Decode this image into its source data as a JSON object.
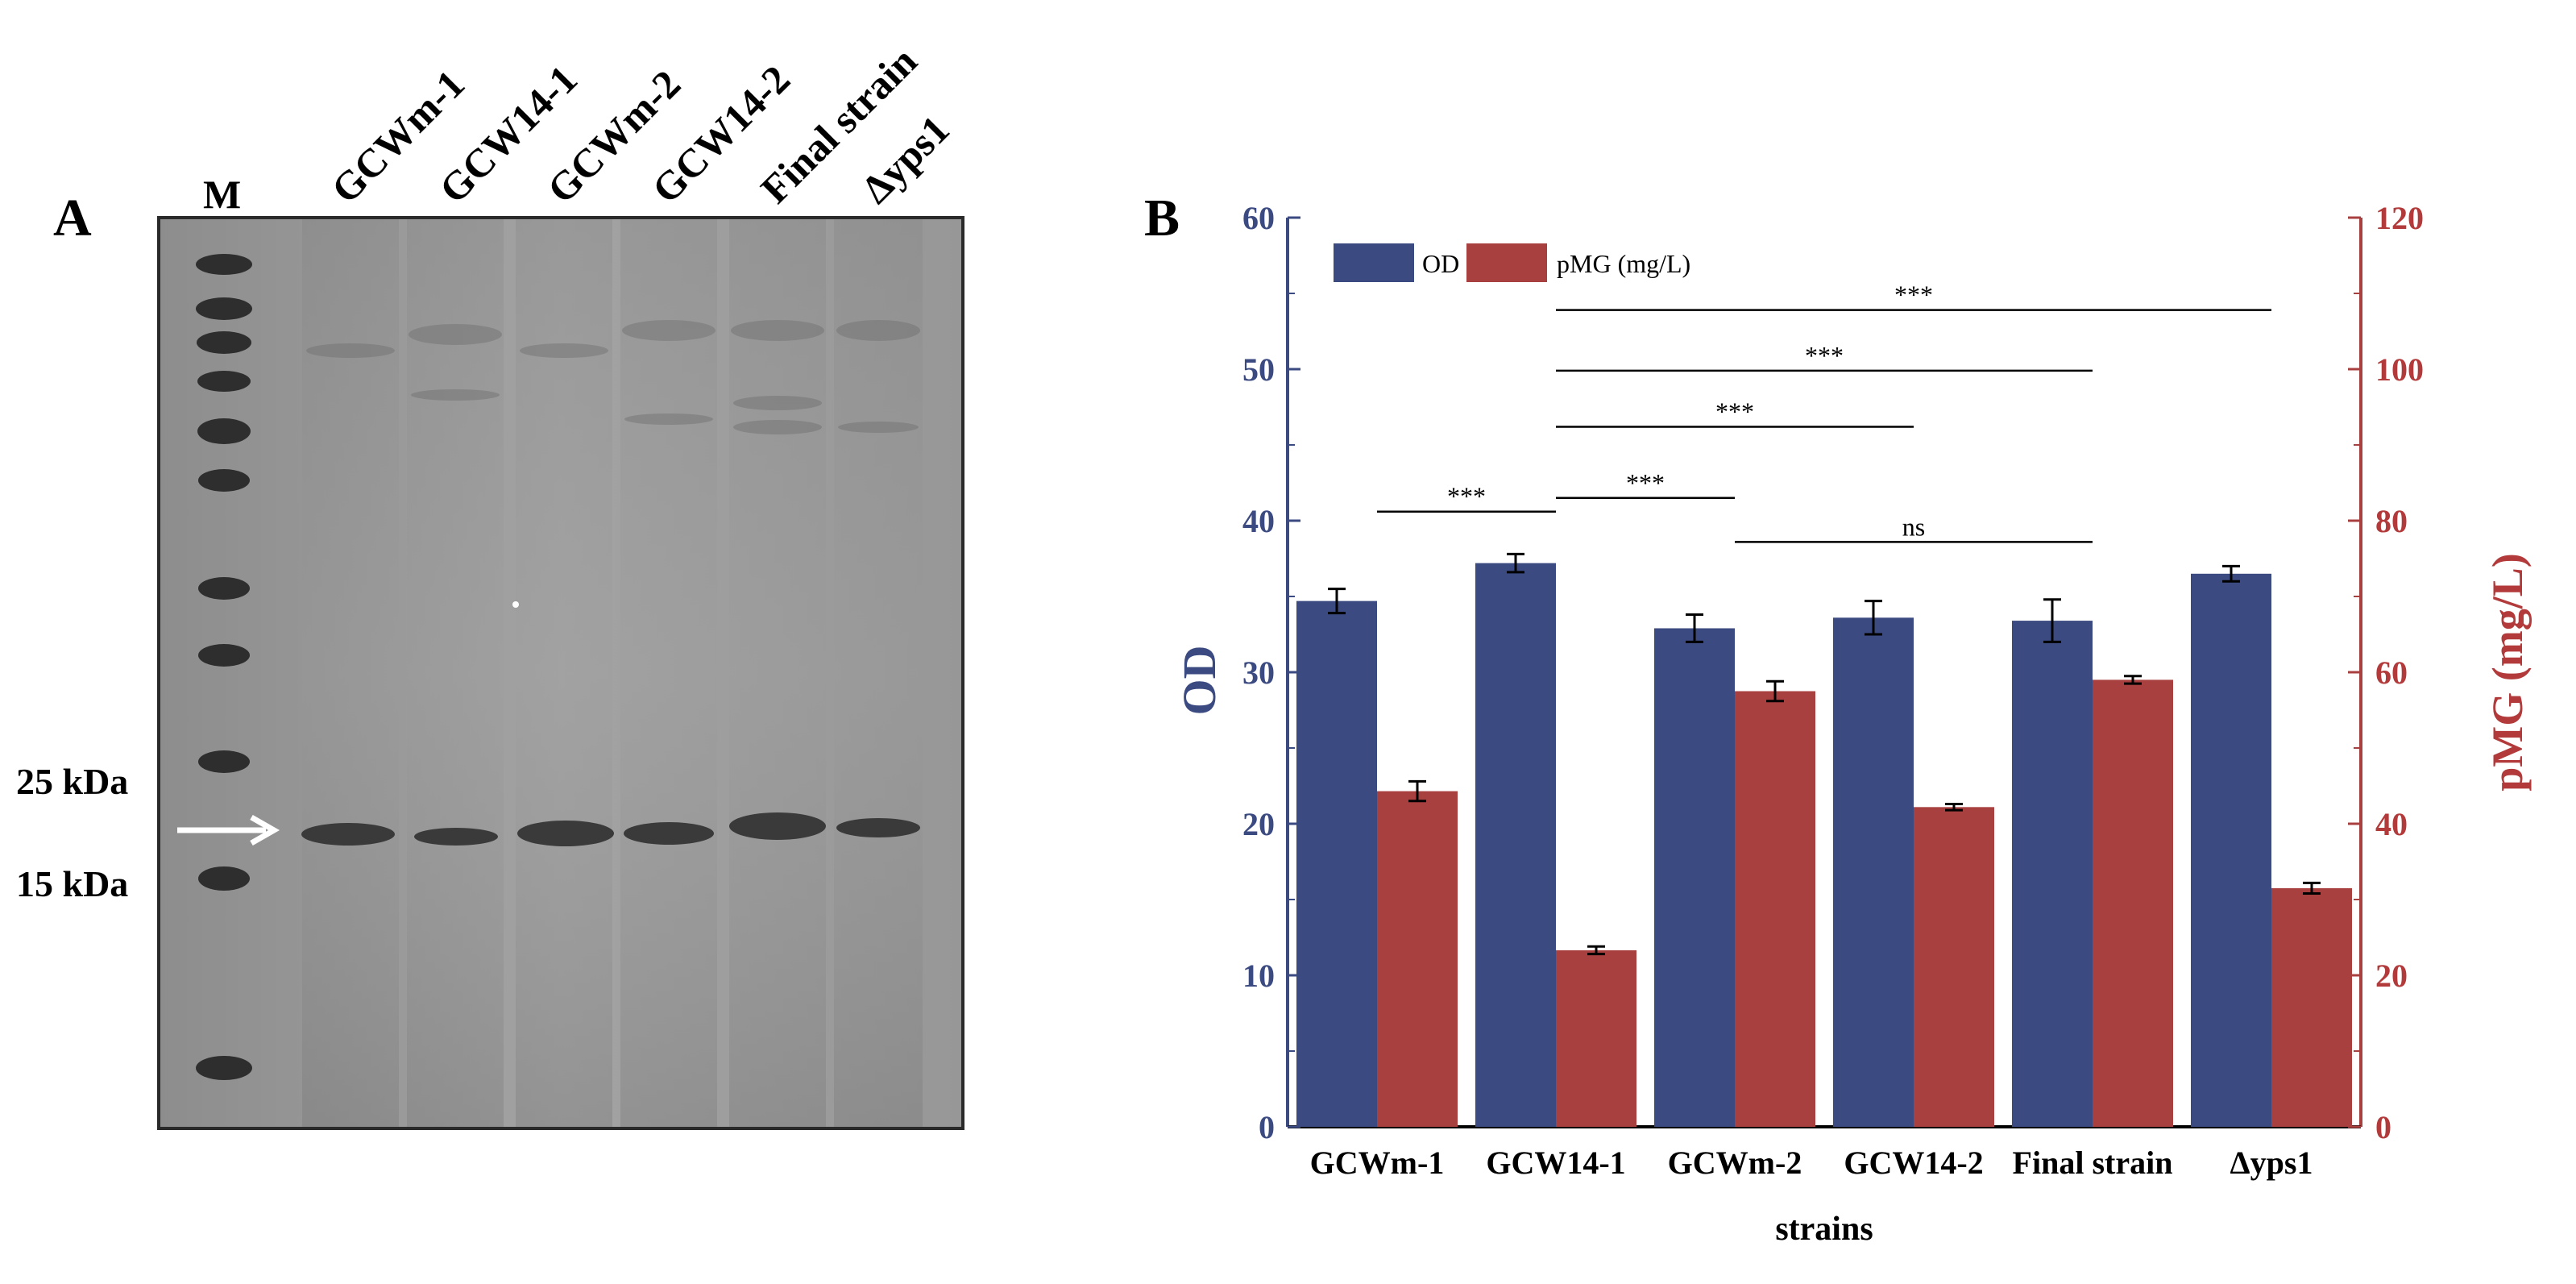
{
  "panel_a": {
    "letter": "A",
    "marker_lane_label": "M",
    "lane_labels": [
      "GCWm-1",
      "GCW14-1",
      "GCWm-2",
      "GCW14-2",
      "Final strain",
      "Δyps1"
    ],
    "marker_sizes": [
      "25 kDa",
      "15 kDa"
    ]
  },
  "panel_b": {
    "letter": "B"
  },
  "chart_data": {
    "type": "bar",
    "categories": [
      "GCWm-1",
      "GCW14-1",
      "GCWm-2",
      "GCW14-2",
      "Final strain",
      "Δyps1"
    ],
    "series": [
      {
        "name": "OD",
        "axis": "left",
        "color": "#3b4a80",
        "values": [
          34.7,
          37.2,
          32.9,
          33.6,
          33.4,
          36.5
        ],
        "errors": [
          0.8,
          0.6,
          0.9,
          1.1,
          1.4,
          0.5
        ]
      },
      {
        "name": "pMG (mg/L)",
        "axis": "right",
        "color": "#a84040",
        "values": [
          44.3,
          23.3,
          57.5,
          42.2,
          59.0,
          31.5
        ],
        "errors": [
          1.3,
          0.5,
          1.3,
          0.4,
          0.5,
          0.7
        ]
      }
    ],
    "xlabel": "strains",
    "ylabel_left": "OD",
    "ylabel_right": "pMG (mg/L)",
    "ylim_left": [
      0,
      60
    ],
    "ylim_right": [
      0,
      120
    ],
    "yticks_left": [
      0,
      10,
      20,
      30,
      40,
      50,
      60
    ],
    "yticks_right": [
      0,
      20,
      40,
      60,
      80,
      100,
      120
    ],
    "legend_position": "top-left",
    "grid": false,
    "significance": [
      {
        "from": "GCWm-1",
        "to": "GCW14-1",
        "label": "***",
        "level": 40.6
      },
      {
        "from": "GCW14-1",
        "to": "GCWm-2",
        "label": "***",
        "level": 41.5
      },
      {
        "from": "GCW14-1",
        "to": "GCW14-2",
        "label": "***",
        "level": 46.2
      },
      {
        "from": "GCW14-1",
        "to": "Final strain",
        "label": "***",
        "level": 49.9
      },
      {
        "from": "GCW14-1",
        "to": "Δyps1",
        "label": "***",
        "level": 53.9
      },
      {
        "from": "GCWm-2",
        "to": "Final strain",
        "label": "ns",
        "level": 38.6
      }
    ]
  }
}
